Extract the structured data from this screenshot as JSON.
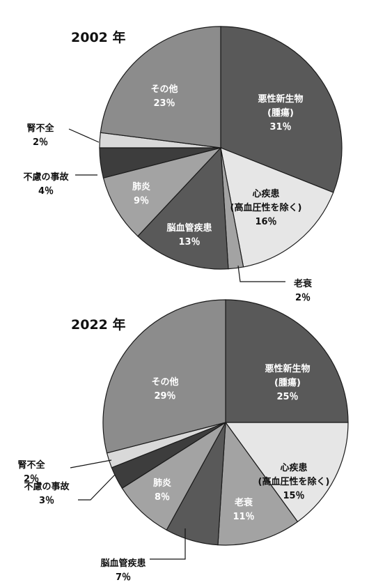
{
  "chart_data": [
    {
      "type": "pie",
      "title": "2002 年",
      "unit": "%",
      "colors": {
        "dark": "#595959",
        "darker": "#3d3d3d",
        "light": "#e6e6e6",
        "mid": "#a3a3a3",
        "medium": "#8c8c8c",
        "pale": "#d9d9d9"
      },
      "slices": [
        {
          "label": "悪性新生物",
          "sublabel": "(腫瘍)",
          "value_text": "31％",
          "value": 31,
          "color": "#595959"
        },
        {
          "label": "心疾患",
          "sublabel": "(高血圧性を除く)",
          "value_text": "16％",
          "value": 16,
          "color": "#e6e6e6"
        },
        {
          "label": "老衰",
          "value_text": "2％",
          "value": 2,
          "color": "#a3a3a3"
        },
        {
          "label": "脳血管疾患",
          "value_text": "13％",
          "value": 13,
          "color": "#595959"
        },
        {
          "label": "肺炎",
          "value_text": "9％",
          "value": 9,
          "color": "#a3a3a3"
        },
        {
          "label": "不慮の事故",
          "value_text": "4％",
          "value": 4,
          "color": "#3d3d3d"
        },
        {
          "label": "腎不全",
          "value_text": "2％",
          "value": 2,
          "color": "#d9d9d9"
        },
        {
          "label": "その他",
          "value_text": "23％",
          "value": 23,
          "color": "#8c8c8c"
        }
      ]
    },
    {
      "type": "pie",
      "title": "2022 年",
      "unit": "%",
      "colors": {
        "dark": "#595959",
        "darker": "#3d3d3d",
        "light": "#e6e6e6",
        "mid": "#a3a3a3",
        "medium": "#8c8c8c",
        "pale": "#d9d9d9"
      },
      "slices": [
        {
          "label": "悪性新生物",
          "sublabel": "(腫瘍)",
          "value_text": "25％",
          "value": 25,
          "color": "#595959"
        },
        {
          "label": "心疾患",
          "sublabel": "(高血圧性を除く)",
          "value_text": "15％",
          "value": 15,
          "color": "#e6e6e6"
        },
        {
          "label": "老衰",
          "value_text": "11％",
          "value": 11,
          "color": "#a3a3a3"
        },
        {
          "label": "脳血管疾患",
          "value_text": "7％",
          "value": 7,
          "color": "#595959"
        },
        {
          "label": "肺炎",
          "value_text": "8％",
          "value": 8,
          "color": "#a3a3a3"
        },
        {
          "label": "不慮の事故",
          "value_text": "3％",
          "value": 3,
          "color": "#3d3d3d"
        },
        {
          "label": "腎不全",
          "value_text": "2％",
          "value": 2,
          "color": "#d9d9d9"
        },
        {
          "label": "その他",
          "value_text": "29％",
          "value": 29,
          "color": "#8c8c8c"
        }
      ]
    }
  ]
}
